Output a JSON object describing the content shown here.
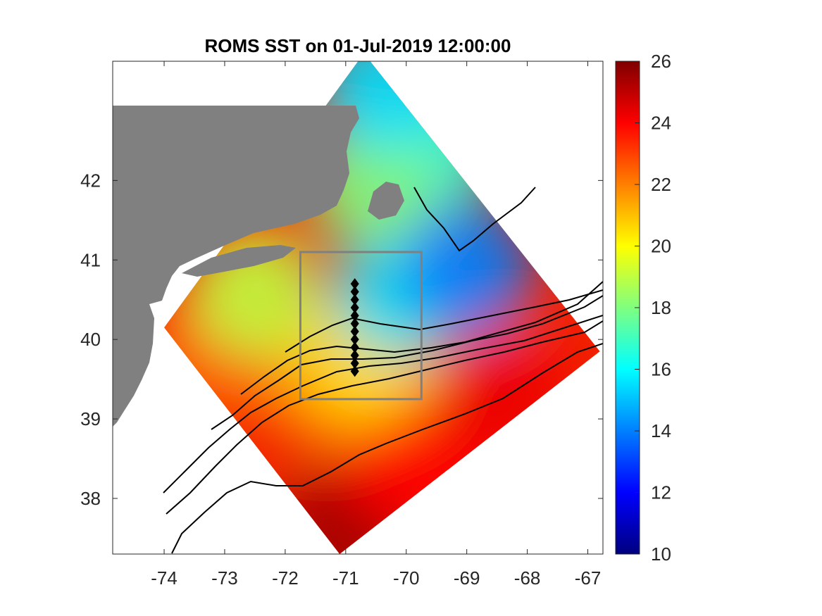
{
  "chart_data": {
    "type": "heatmap",
    "title": "ROMS SST on 01-Jul-2019 12:00:00",
    "xlim": [
      -74.85,
      -66.75
    ],
    "ylim": [
      37.3,
      43.5
    ],
    "x_ticks": [
      -74,
      -73,
      -72,
      -71,
      -70,
      -69,
      -68,
      -67
    ],
    "y_ticks": [
      38,
      39,
      40,
      41,
      42
    ],
    "x_tick_labels": [
      "-74",
      "-73",
      "-72",
      "-71",
      "-70",
      "-69",
      "-68",
      "-67"
    ],
    "y_tick_labels": [
      "38",
      "39",
      "40",
      "41",
      "42"
    ],
    "colorbar": {
      "colormap": "jet",
      "range": [
        10,
        26
      ],
      "ticks": [
        10,
        12,
        14,
        16,
        18,
        20,
        22,
        24,
        26
      ],
      "tick_labels": [
        "10",
        "12",
        "14",
        "16",
        "18",
        "20",
        "22",
        "24",
        "26"
      ]
    },
    "land_color": "#808080",
    "box_color": "#808080",
    "study_box": {
      "lon": [
        -71.75,
        -69.75
      ],
      "lat": [
        39.25,
        41.1
      ]
    },
    "transect": {
      "lon": -70.85,
      "lat": [
        39.6,
        39.7,
        39.8,
        39.9,
        40.0,
        40.1,
        40.2,
        40.3,
        40.4,
        40.5,
        40.6,
        40.7
      ]
    },
    "domain_corners": [
      {
        "lon": -71.1,
        "lat": 37.3
      },
      {
        "lon": -74.0,
        "lat": 40.15
      },
      {
        "lon": -70.7,
        "lat": 43.6
      },
      {
        "lon": -66.8,
        "lat": 39.85
      }
    ],
    "sst_samples": [
      {
        "lon": -71.0,
        "lat": 37.6,
        "sst": 25.5
      },
      {
        "lon": -70.0,
        "lat": 38.5,
        "sst": 24.0
      },
      {
        "lon": -68.5,
        "lat": 39.3,
        "sst": 24.3
      },
      {
        "lon": -73.2,
        "lat": 39.8,
        "sst": 22.5
      },
      {
        "lon": -71.3,
        "lat": 39.5,
        "sst": 21.5
      },
      {
        "lon": -70.6,
        "lat": 39.8,
        "sst": 20.5
      },
      {
        "lon": -72.5,
        "lat": 40.6,
        "sst": 19.0
      },
      {
        "lon": -70.1,
        "lat": 40.6,
        "sst": 15.5
      },
      {
        "lon": -69.0,
        "lat": 40.9,
        "sst": 14.0
      },
      {
        "lon": -69.5,
        "lat": 42.5,
        "sst": 16.5
      },
      {
        "lon": -70.6,
        "lat": 42.0,
        "sst": 18.0
      },
      {
        "lon": -70.4,
        "lat": 43.2,
        "sst": 15.5
      }
    ]
  }
}
